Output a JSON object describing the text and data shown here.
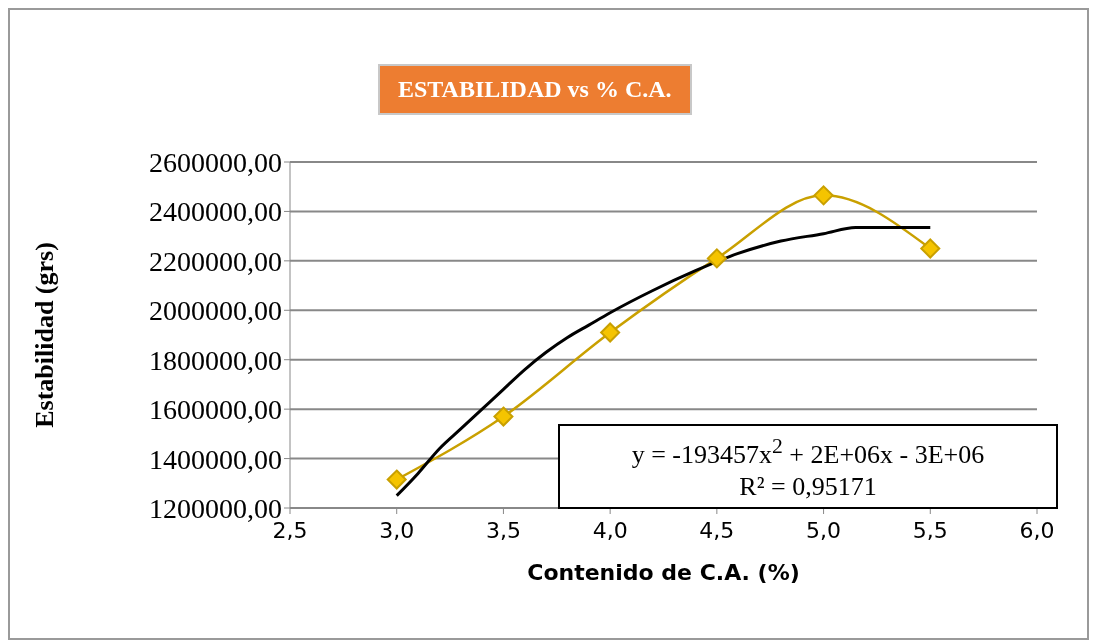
{
  "chart_data": {
    "type": "line",
    "title": "ESTABILIDAD vs % C.A.",
    "xlabel": "Contenido de C.A. (%)",
    "ylabel": "Estabilidad (grs)",
    "xlim": [
      2.5,
      6
    ],
    "xticks": [
      {
        "value": 2.5,
        "label": "2,5"
      },
      {
        "value": 3,
        "label": "3,0"
      },
      {
        "value": 3.5,
        "label": "3,5"
      },
      {
        "value": 4,
        "label": "4,0"
      },
      {
        "value": 4.5,
        "label": "4,5"
      },
      {
        "value": 5,
        "label": "5,0"
      },
      {
        "value": 5.5,
        "label": "5,5"
      },
      {
        "value": 6,
        "label": "6,0"
      }
    ],
    "ylim": [
      1200000,
      2600000
    ],
    "yticks": [
      {
        "value": 1200000,
        "label": "1200000,00"
      },
      {
        "value": 1400000,
        "label": "1400000,00"
      },
      {
        "value": 1600000,
        "label": "1600000,00"
      },
      {
        "value": 1800000,
        "label": "1800000,00"
      },
      {
        "value": 2000000,
        "label": "2000000,00"
      },
      {
        "value": 2200000,
        "label": "2200000,00"
      },
      {
        "value": 2400000,
        "label": "2400000,00"
      },
      {
        "value": 2600000,
        "label": "2600000,00"
      }
    ],
    "grid": "y",
    "series": [
      {
        "color": "#c9a000",
        "marker": "diamond",
        "x": [
          3.0,
          3.5,
          4.0,
          4.5,
          5.0,
          5.5
        ],
        "values": [
          1315000,
          1570000,
          1910000,
          2210000,
          2465000,
          2250000
        ]
      },
      {
        "type": "line",
        "color": "#000000",
        "marker": "none",
        "x": [
          3.0,
          3.1,
          3.2,
          3.3,
          3.4,
          3.5,
          3.6,
          3.7,
          3.8,
          3.9,
          4.0,
          4.2,
          4.4,
          4.6,
          4.8,
          5.0,
          5.15,
          5.5
        ],
        "values": [
          1250000,
          1340000,
          1440000,
          1520000,
          1600000,
          1680000,
          1760000,
          1830000,
          1890000,
          1940000,
          1990000,
          2080000,
          2160000,
          2230000,
          2280000,
          2310000,
          2335000,
          2335000
        ]
      }
    ],
    "annotations": [
      "y = -193457x$^{2}$ + 2E+06x - 3E+06",
      "R² = 0,95171"
    ]
  }
}
